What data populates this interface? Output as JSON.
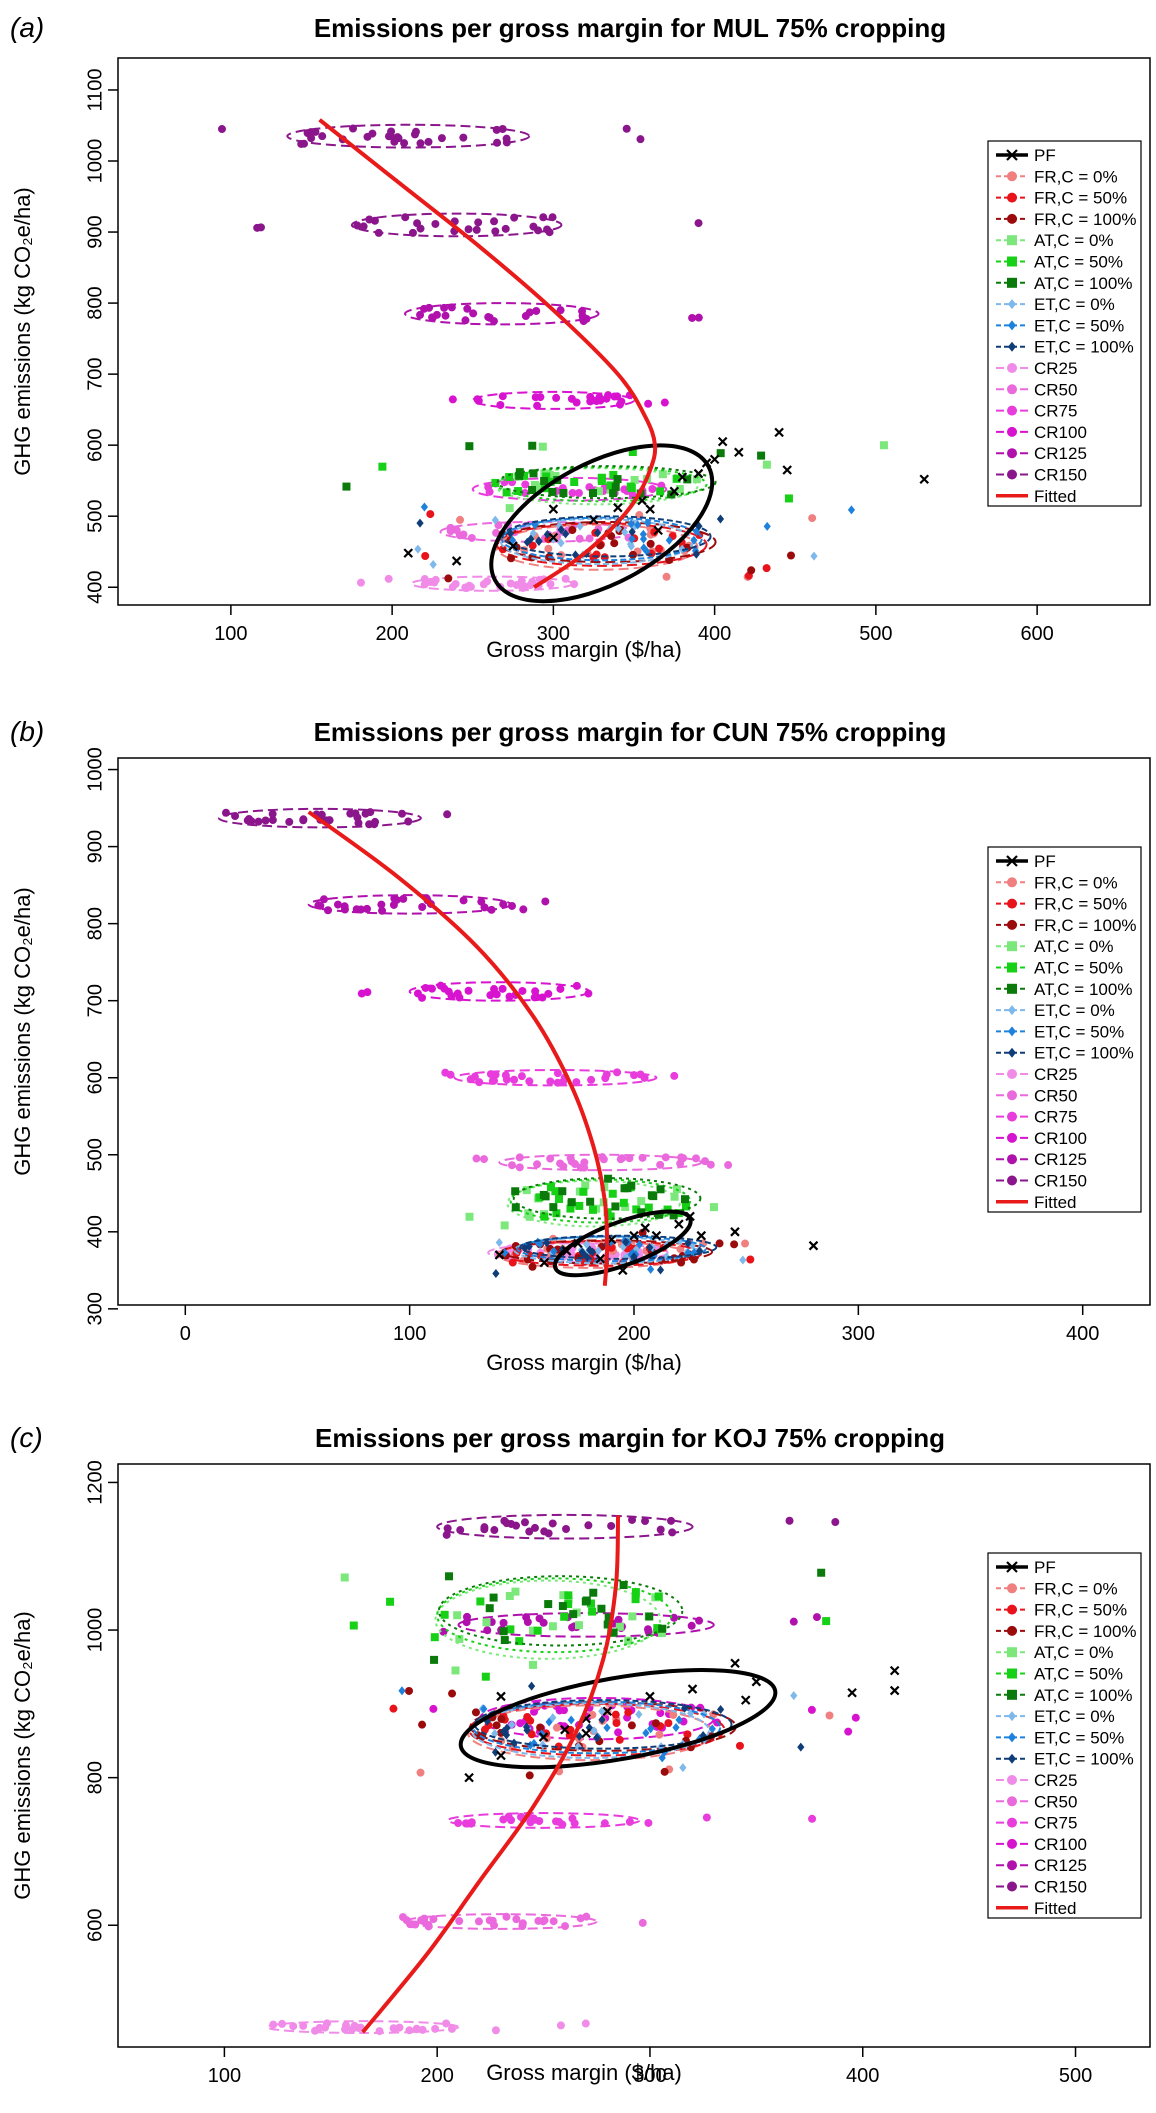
{
  "legend_entries": [
    {
      "label": "PF",
      "color": "#000000",
      "marker": "x"
    },
    {
      "label": "FR,C = 0%",
      "color": "#f08080",
      "marker": "circle"
    },
    {
      "label": "FR,C = 50%",
      "color": "#e8131b",
      "marker": "circle"
    },
    {
      "label": "FR,C = 100%",
      "color": "#9b0b0b",
      "marker": "circle"
    },
    {
      "label": "AT,C = 0%",
      "color": "#7ce87c",
      "marker": "square"
    },
    {
      "label": "AT,C = 50%",
      "color": "#17d117",
      "marker": "square"
    },
    {
      "label": "AT,C = 100%",
      "color": "#0a7a0a",
      "marker": "square"
    },
    {
      "label": "ET,C = 0%",
      "color": "#7fb8ea",
      "marker": "diamond"
    },
    {
      "label": "ET,C = 50%",
      "color": "#1e82dc",
      "marker": "diamond"
    },
    {
      "label": "ET,C = 100%",
      "color": "#0f3d78",
      "marker": "diamond"
    },
    {
      "label": "CR25",
      "color": "#f08ce8",
      "marker": "circle"
    },
    {
      "label": "CR50",
      "color": "#ea6ade",
      "marker": "circle"
    },
    {
      "label": "CR75",
      "color": "#e83ddc",
      "marker": "circle"
    },
    {
      "label": "CR100",
      "color": "#d813d0",
      "marker": "circle"
    },
    {
      "label": "CR125",
      "color": "#b010ac",
      "marker": "circle"
    },
    {
      "label": "CR150",
      "color": "#8b168c",
      "marker": "circle"
    },
    {
      "label": "Fitted",
      "color": "#e81a1a",
      "marker": "line"
    }
  ],
  "chart_data": [
    {
      "panel": "(a)",
      "type": "scatter",
      "title": "Emissions per gross margin for MUL 75% cropping",
      "xlabel": "Gross margin ($/ha)",
      "ylabel": "GHG emissions (kg CO₂e/ha)",
      "xlim": [
        30,
        670
      ],
      "ylim": [
        375,
        1145
      ],
      "xticks": [
        100,
        200,
        300,
        400,
        500,
        600
      ],
      "yticks": [
        400,
        500,
        600,
        700,
        800,
        900,
        1000,
        1100
      ],
      "legend_position": "right",
      "fitted_curve": [
        [
          155,
          1058
        ],
        [
          205,
          968
        ],
        [
          255,
          878
        ],
        [
          300,
          790
        ],
        [
          340,
          700
        ],
        [
          357,
          640
        ],
        [
          363,
          600
        ],
        [
          360,
          565
        ],
        [
          350,
          520
        ],
        [
          335,
          480
        ],
        [
          315,
          440
        ],
        [
          288,
          400
        ]
      ],
      "cr_clusters": [
        {
          "name": "CR25",
          "cx": 262,
          "cy": 405,
          "x_min": 175,
          "x_max": 335,
          "rx": 50,
          "ry": 10,
          "n": 30
        },
        {
          "name": "CR50",
          "cx": 290,
          "cy": 478,
          "x_min": 200,
          "x_max": 400,
          "rx": 60,
          "ry": 14,
          "n": 24
        },
        {
          "name": "CR75",
          "cx": 310,
          "cy": 538,
          "x_min": 175,
          "x_max": 395,
          "rx": 60,
          "ry": 16,
          "n": 24
        },
        {
          "name": "CR100",
          "cx": 300,
          "cy": 663,
          "x_min": 185,
          "x_max": 420,
          "rx": 50,
          "ry": 12,
          "n": 26
        },
        {
          "name": "CR125",
          "cx": 268,
          "cy": 785,
          "x_min": 130,
          "x_max": 410,
          "rx": 60,
          "ry": 15,
          "n": 26
        },
        {
          "name": "CR150",
          "cx": 240,
          "cy": 910,
          "x_min": 100,
          "x_max": 395,
          "rx": 65,
          "ry": 16,
          "n": 28
        },
        {
          "name": "CR150b",
          "cx": 210,
          "cy": 1035,
          "x_min": 65,
          "x_max": 365,
          "rx": 75,
          "ry": 16,
          "n": 32
        }
      ],
      "groups": [
        {
          "name": "AT",
          "cx": 330,
          "cy": 545,
          "x_min": 170,
          "x_max": 505,
          "y_min": 495,
          "y_max": 600,
          "rx": 65,
          "ry": 24,
          "n": 60
        },
        {
          "name": "FR",
          "cx": 330,
          "cy": 460,
          "x_min": 180,
          "x_max": 495,
          "y_min": 410,
          "y_max": 510,
          "rx": 65,
          "ry": 30,
          "n": 60
        },
        {
          "name": "ET",
          "cx": 330,
          "cy": 468,
          "x_min": 200,
          "x_max": 495,
          "y_min": 420,
          "y_max": 520,
          "rx": 62,
          "ry": 30,
          "n": 50
        }
      ],
      "pf": {
        "points": [
          [
            210,
            448
          ],
          [
            240,
            437
          ],
          [
            275,
            458
          ],
          [
            300,
            470
          ],
          [
            325,
            495
          ],
          [
            340,
            512
          ],
          [
            355,
            522
          ],
          [
            375,
            535
          ],
          [
            380,
            555
          ],
          [
            395,
            575
          ],
          [
            400,
            580
          ],
          [
            405,
            605
          ],
          [
            415,
            590
          ],
          [
            440,
            618
          ],
          [
            445,
            565
          ],
          [
            530,
            552
          ],
          [
            360,
            510
          ],
          [
            365,
            480
          ],
          [
            300,
            510
          ],
          [
            390,
            560
          ]
        ],
        "ellipse": {
          "cx": 330,
          "cy": 490,
          "rx": 75,
          "ry": 85,
          "angle": -28
        }
      }
    },
    {
      "panel": "(b)",
      "type": "scatter",
      "title": "Emissions per gross margin for CUN 75% cropping",
      "xlabel": "Gross margin ($/ha)",
      "ylabel": "GHG emissions (kg CO₂e/ha)",
      "xlim": [
        -30,
        430
      ],
      "ylim": [
        305,
        1015
      ],
      "xticks": [
        0,
        100,
        200,
        300,
        400
      ],
      "yticks": [
        300,
        400,
        500,
        600,
        700,
        800,
        900,
        1000
      ],
      "legend_position": "right",
      "fitted_curve": [
        [
          55,
          945
        ],
        [
          95,
          860
        ],
        [
          130,
          770
        ],
        [
          155,
          680
        ],
        [
          172,
          590
        ],
        [
          182,
          510
        ],
        [
          187,
          440
        ],
        [
          188,
          380
        ],
        [
          187,
          330
        ]
      ],
      "cr_clusters": [
        {
          "name": "CR25",
          "cx": 175,
          "cy": 373,
          "x_min": 115,
          "x_max": 240,
          "rx": 40,
          "ry": 12,
          "n": 30
        },
        {
          "name": "CR50",
          "cx": 185,
          "cy": 490,
          "x_min": 115,
          "x_max": 250,
          "rx": 45,
          "ry": 10,
          "n": 30
        },
        {
          "name": "CR75",
          "cx": 165,
          "cy": 600,
          "x_min": 100,
          "x_max": 235,
          "rx": 45,
          "ry": 10,
          "n": 28
        },
        {
          "name": "CR100",
          "cx": 140,
          "cy": 712,
          "x_min": 70,
          "x_max": 195,
          "rx": 40,
          "ry": 12,
          "n": 28
        },
        {
          "name": "CR125",
          "cx": 100,
          "cy": 825,
          "x_min": 35,
          "x_max": 165,
          "rx": 45,
          "ry": 12,
          "n": 28
        },
        {
          "name": "CR150",
          "cx": 60,
          "cy": 937,
          "x_min": -5,
          "x_max": 125,
          "rx": 45,
          "ry": 12,
          "n": 30
        }
      ],
      "groups": [
        {
          "name": "AT",
          "cx": 185,
          "cy": 440,
          "x_min": 125,
          "x_max": 245,
          "y_min": 400,
          "y_max": 470,
          "rx": 40,
          "ry": 28,
          "n": 60
        },
        {
          "name": "FR",
          "cx": 185,
          "cy": 372,
          "x_min": 125,
          "x_max": 260,
          "y_min": 335,
          "y_max": 400,
          "rx": 45,
          "ry": 16,
          "n": 60
        },
        {
          "name": "ET",
          "cx": 190,
          "cy": 378,
          "x_min": 125,
          "x_max": 250,
          "y_min": 345,
          "y_max": 405,
          "rx": 42,
          "ry": 16,
          "n": 50
        }
      ],
      "pf": {
        "points": [
          [
            140,
            370
          ],
          [
            160,
            360
          ],
          [
            170,
            375
          ],
          [
            185,
            365
          ],
          [
            190,
            390
          ],
          [
            200,
            395
          ],
          [
            205,
            405
          ],
          [
            210,
            395
          ],
          [
            220,
            410
          ],
          [
            225,
            420
          ],
          [
            230,
            395
          ],
          [
            245,
            400
          ],
          [
            280,
            382
          ],
          [
            195,
            350
          ],
          [
            175,
            385
          ]
        ],
        "ellipse": {
          "cx": 195,
          "cy": 385,
          "rx": 32,
          "ry": 28,
          "angle": -20
        }
      }
    },
    {
      "panel": "(c)",
      "type": "scatter",
      "title": "Emissions per gross margin for KOJ 75% cropping",
      "xlabel": "Gross margin ($/ha)",
      "ylabel": "GHG emissions (kg CO₂e/ha)",
      "xlim": [
        50,
        535
      ],
      "ylim": [
        435,
        1225
      ],
      "xticks": [
        100,
        200,
        300,
        400,
        500
      ],
      "yticks": [
        600,
        800,
        1000,
        1200
      ],
      "legend_position": "right",
      "fitted_curve": [
        [
          165,
          455
        ],
        [
          195,
          560
        ],
        [
          220,
          660
        ],
        [
          245,
          760
        ],
        [
          265,
          860
        ],
        [
          278,
          960
        ],
        [
          284,
          1060
        ],
        [
          285,
          1155
        ]
      ],
      "cr_clusters": [
        {
          "name": "CR25",
          "cx": 165,
          "cy": 462,
          "x_min": 120,
          "x_max": 270,
          "rx": 45,
          "ry": 8,
          "n": 28
        },
        {
          "name": "CR50",
          "cx": 230,
          "cy": 605,
          "x_min": 180,
          "x_max": 335,
          "rx": 45,
          "ry": 10,
          "n": 28
        },
        {
          "name": "CR75",
          "cx": 250,
          "cy": 742,
          "x_min": 185,
          "x_max": 380,
          "rx": 45,
          "ry": 10,
          "n": 26
        },
        {
          "name": "CR100",
          "cx": 275,
          "cy": 880,
          "x_min": 175,
          "x_max": 400,
          "rx": 55,
          "ry": 28,
          "n": 40
        },
        {
          "name": "CR125",
          "cx": 270,
          "cy": 1007,
          "x_min": 200,
          "x_max": 395,
          "rx": 60,
          "ry": 16,
          "n": 30
        },
        {
          "name": "CR150",
          "cx": 260,
          "cy": 1140,
          "x_min": 160,
          "x_max": 390,
          "rx": 60,
          "ry": 16,
          "n": 26
        }
      ],
      "groups": [
        {
          "name": "AT",
          "cx": 255,
          "cy": 1020,
          "x_min": 150,
          "x_max": 385,
          "y_min": 935,
          "y_max": 1080,
          "rx": 55,
          "ry": 50,
          "n": 60
        },
        {
          "name": "FR",
          "cx": 275,
          "cy": 865,
          "x_min": 170,
          "x_max": 410,
          "y_min": 800,
          "y_max": 930,
          "rx": 60,
          "ry": 35,
          "n": 60
        },
        {
          "name": "ET",
          "cx": 275,
          "cy": 868,
          "x_min": 175,
          "x_max": 410,
          "y_min": 810,
          "y_max": 925,
          "rx": 58,
          "ry": 35,
          "n": 50
        }
      ],
      "pf": {
        "points": [
          [
            215,
            800
          ],
          [
            230,
            830
          ],
          [
            250,
            855
          ],
          [
            260,
            865
          ],
          [
            270,
            880
          ],
          [
            280,
            890
          ],
          [
            300,
            910
          ],
          [
            320,
            920
          ],
          [
            340,
            955
          ],
          [
            345,
            905
          ],
          [
            350,
            930
          ],
          [
            395,
            915
          ],
          [
            415,
            945
          ],
          [
            415,
            918
          ],
          [
            230,
            910
          ],
          [
            270,
            860
          ]
        ],
        "ellipse": {
          "cx": 285,
          "cy": 880,
          "rx": 75,
          "ry": 55,
          "angle": -10
        }
      }
    }
  ]
}
